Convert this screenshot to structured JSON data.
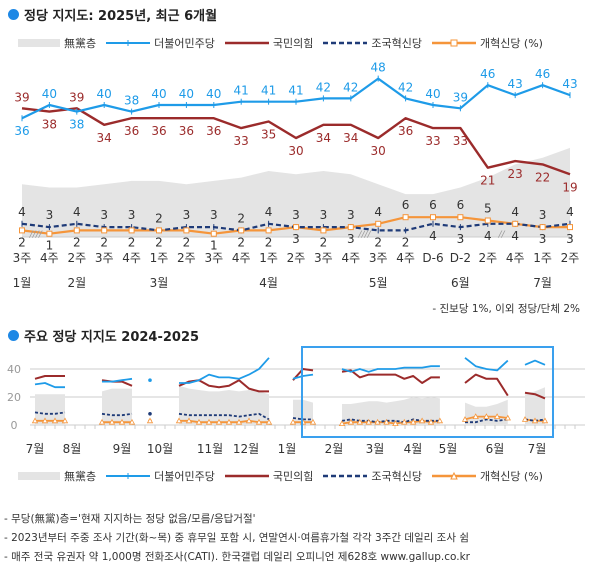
{
  "colors": {
    "dp": "#1e9be8",
    "ppp": "#9b2b2b",
    "rebuild": "#1f3b78",
    "reform": "#f5953a",
    "nonpartisan": "#e4e4e4",
    "box": "#3aa0ee"
  },
  "section1": {
    "title": "정당 지지도: 2025년, 최근 6개월"
  },
  "section2": {
    "title": "주요 정당 지지도 2024-2025"
  },
  "legend": {
    "nonpartisan": "無黨층",
    "dp": "더불어민주당",
    "ppp": "국민의힘",
    "rebuild": "조국혁신당",
    "reform": "개혁신당 (%)"
  },
  "other_note": "- 진보당 1%, 이외 정당/단체 2%",
  "footnotes": [
    "- 무당(無黨)층='현재 지지하는 정당 없음/모름/응답거절'",
    "- 2023년부터 주중 조사 기간(화~목) 중 휴무일 포함 시, 연말연시·여름휴가철 각각 3주간 데일리 조사 쉼",
    "- 매주 전국 유권자 약 1,000명 전화조사(CATI). 한국갤럽 데일리 오피니언 제628호 www.gallup.co.kr"
  ],
  "chart_data": [
    {
      "type": "line",
      "title": "정당 지지도: 2025년, 최근 6개월",
      "ylabel": "%",
      "ylim": [
        0,
        50
      ],
      "categories": [
        "3주",
        "4주",
        "2주",
        "3주",
        "4주",
        "1주",
        "2주",
        "3주",
        "4주",
        "1주",
        "2주",
        "3주",
        "4주",
        "3주",
        "4주",
        "D-6",
        "D-2",
        "2주",
        "4주",
        "1주",
        "2주"
      ],
      "months": [
        {
          "label": "1월",
          "index": 0
        },
        {
          "label": "2월",
          "index": 2
        },
        {
          "label": "3월",
          "index": 5
        },
        {
          "label": "4월",
          "index": 9
        },
        {
          "label": "5월",
          "index": 13
        },
        {
          "label": "6월",
          "index": 16
        },
        {
          "label": "7월",
          "index": 19
        }
      ],
      "breaks": [
        {
          "after": 0,
          "mark": "////"
        },
        {
          "after": 12,
          "mark": "////"
        },
        {
          "after": 17,
          "mark": "//"
        }
      ],
      "series": [
        {
          "key": "nonpartisan",
          "name": "無黨층",
          "type": "area",
          "values": [
            16,
            15,
            15,
            16,
            17,
            17,
            16,
            17,
            18,
            20,
            19,
            20,
            19,
            16,
            13,
            13,
            15,
            18,
            22,
            24,
            27
          ]
        },
        {
          "key": "dp",
          "name": "더불어민주당",
          "values": [
            36,
            40,
            38,
            40,
            38,
            40,
            40,
            40,
            41,
            41,
            41,
            42,
            42,
            48,
            42,
            40,
            39,
            46,
            43,
            46,
            43
          ]
        },
        {
          "key": "ppp",
          "name": "국민의힘",
          "values": [
            39,
            38,
            39,
            34,
            36,
            36,
            36,
            36,
            33,
            35,
            30,
            34,
            34,
            30,
            36,
            33,
            33,
            21,
            23,
            22,
            19
          ]
        },
        {
          "key": "rebuild",
          "name": "조국혁신당",
          "values": [
            4,
            3,
            4,
            3,
            3,
            2,
            3,
            3,
            2,
            4,
            3,
            3,
            3,
            2,
            2,
            4,
            3,
            4,
            4,
            3,
            4
          ]
        },
        {
          "key": "reform",
          "name": "개혁신당",
          "values": [
            2,
            1,
            2,
            2,
            2,
            2,
            2,
            1,
            2,
            2,
            3,
            2,
            3,
            4,
            6,
            6,
            6,
            5,
            4,
            3,
            3
          ]
        }
      ]
    },
    {
      "type": "line",
      "title": "주요 정당 지지도 2024-2025",
      "ylim": [
        0,
        45
      ],
      "yticks": [
        0,
        20,
        40
      ],
      "xunit": "weeks since 2024-07",
      "xlim": [
        0,
        54
      ],
      "months": [
        {
          "label": "7월",
          "week": 0
        },
        {
          "label": "8월",
          "week": 3.7
        },
        {
          "label": "9월",
          "week": 8.7
        },
        {
          "label": "10월",
          "week": 12.5
        },
        {
          "label": "11월",
          "week": 17.5
        },
        {
          "label": "12월",
          "week": 21.1
        },
        {
          "label": "1월",
          "week": 25.2
        },
        {
          "label": "2월",
          "week": 29.9
        },
        {
          "label": "3월",
          "week": 34
        },
        {
          "label": "4월",
          "week": 37.8
        },
        {
          "label": "5월",
          "week": 41.3
        },
        {
          "label": "6월",
          "week": 46
        },
        {
          "label": "7월",
          "week": 50.2
        }
      ],
      "highlight_weeks": [
        26.7,
        51.8
      ],
      "segments": [
        {
          "start": 0,
          "step": 1,
          "nonpartisan": [
            22,
            22,
            22,
            22
          ],
          "dp": [
            29,
            30,
            27,
            27
          ],
          "ppp": [
            33,
            35,
            35,
            35
          ],
          "rebuild": [
            9,
            8,
            8,
            9
          ],
          "reform": [
            3,
            3,
            3,
            3
          ]
        },
        {
          "start": 6.7,
          "step": 1,
          "nonpartisan": [
            24,
            26,
            26,
            26
          ],
          "dp": [
            31,
            31,
            32,
            33
          ],
          "ppp": [
            32,
            31,
            31,
            28
          ],
          "rebuild": [
            8,
            7,
            7,
            8
          ],
          "reform": [
            2,
            2,
            2,
            2
          ]
        },
        {
          "start": 11.5,
          "step": 1,
          "nonpartisan": [],
          "dp": [
            32
          ],
          "ppp": [],
          "rebuild": [
            8
          ],
          "reform": [
            3
          ]
        },
        {
          "start": 14.4,
          "step": 1,
          "nonpartisan": [
            28,
            26,
            25,
            24,
            24,
            25,
            24,
            25,
            24,
            22
          ],
          "dp": [
            30,
            30,
            32,
            36,
            34,
            34,
            33,
            36,
            40,
            48
          ],
          "ppp": [
            28,
            31,
            32,
            28,
            27,
            28,
            32,
            26,
            24,
            24
          ],
          "rebuild": [
            8,
            7,
            7,
            7,
            7,
            7,
            6,
            7,
            8,
            4
          ],
          "reform": [
            3,
            3,
            2,
            2,
            2,
            2,
            2,
            3,
            2,
            2
          ]
        },
        {
          "start": 25.8,
          "step": 1,
          "nonpartisan": [
            18,
            18,
            16
          ],
          "dp": [
            33,
            35,
            36
          ],
          "ppp": [
            32,
            40,
            39
          ],
          "rebuild": [
            5,
            4,
            4
          ],
          "reform": [
            2,
            2,
            2
          ]
        },
        {
          "start": 30.7,
          "step": 0.89,
          "nonpartisan": [
            15,
            15,
            16,
            17,
            17,
            16,
            17,
            18,
            20,
            19,
            20,
            19
          ],
          "dp": [
            40,
            38,
            40,
            38,
            40,
            40,
            40,
            41,
            41,
            41,
            42,
            42
          ],
          "ppp": [
            38,
            39,
            34,
            36,
            36,
            36,
            36,
            33,
            35,
            30,
            34,
            34
          ],
          "rebuild": [
            3,
            4,
            3,
            3,
            2,
            3,
            3,
            2,
            4,
            3,
            3,
            3
          ],
          "reform": [
            1,
            2,
            2,
            2,
            2,
            2,
            1,
            2,
            2,
            3,
            2,
            3
          ]
        },
        {
          "start": 43,
          "step": 1.07,
          "nonpartisan": [
            16,
            13,
            13,
            15,
            18
          ],
          "dp": [
            48,
            42,
            40,
            39,
            46
          ],
          "ppp": [
            30,
            36,
            33,
            33,
            21
          ],
          "rebuild": [
            2,
            2,
            4,
            3,
            4
          ],
          "reform": [
            4,
            6,
            6,
            6,
            5
          ]
        },
        {
          "start": 49,
          "step": 1,
          "nonpartisan": [
            22,
            24,
            27
          ],
          "dp": [
            43,
            46,
            43
          ],
          "ppp": [
            23,
            22,
            19
          ],
          "rebuild": [
            4,
            3,
            4
          ],
          "reform": [
            4,
            3,
            3
          ]
        }
      ]
    }
  ]
}
